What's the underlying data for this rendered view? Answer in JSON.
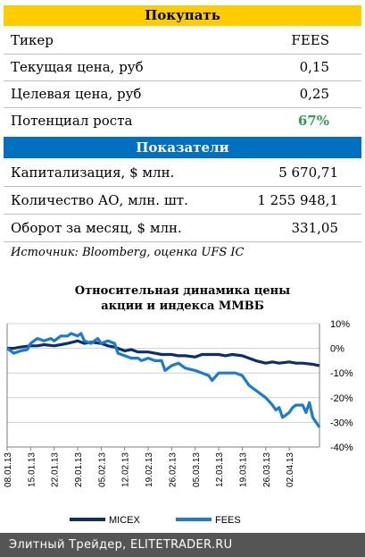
{
  "header": {
    "title": "Покупать"
  },
  "rows_top": [
    {
      "label": "Тикер",
      "value": "FEES"
    },
    {
      "label": "Текущая цена, руб",
      "value": "0,15"
    },
    {
      "label": "Целевая цена, руб",
      "value": "0,25"
    },
    {
      "label": "Потенциал роста",
      "value": "67%"
    }
  ],
  "colors": {
    "header_bg": "#ffcc00",
    "section_bg": "#0070c0",
    "highlight": "#2e9e4f",
    "micex": "#0b2f6b",
    "fees": "#1b7bd1"
  },
  "section": {
    "title": "Показатели"
  },
  "rows_bottom": [
    {
      "label": "Капитализация, $ млн.",
      "value": "5 670,71"
    },
    {
      "label": "Количество АО, млн. шт.",
      "value": "1 255 948,1"
    },
    {
      "label": "Оборот за месяц, $ млн.",
      "value": "331,05"
    }
  ],
  "source": "Источник: Bloomberg, оценка UFS IC",
  "footer": "Элитный Трейдер, ELITETRADER.RU",
  "chart_data": {
    "type": "line",
    "title_lines": [
      "Относительная динамика цены",
      "акции и индекса ММВБ"
    ],
    "x_tick_labels": [
      "08.01.13",
      "15.01.13",
      "22.01.13",
      "29.01.13",
      "05.02.13",
      "12.02.13",
      "19.02.13",
      "26.02.13",
      "05.03.13",
      "12.03.13",
      "19.03.13",
      "26.03.13",
      "02.04.13"
    ],
    "y_ticks": [
      10,
      0,
      -10,
      -20,
      -30,
      -40
    ],
    "y_tick_labels": [
      "10%",
      "0%",
      "-10%",
      "-20%",
      "-30%",
      "-40%"
    ],
    "ylim": [
      -40,
      10
    ],
    "x_range_days": [
      0,
      93
    ],
    "grid": true,
    "legend_position": "bottom",
    "series": [
      {
        "name": "MICEX",
        "color": "#0b2f6b",
        "points": [
          [
            0,
            0
          ],
          [
            2,
            0
          ],
          [
            4,
            0.5
          ],
          [
            7,
            1
          ],
          [
            9,
            1
          ],
          [
            11,
            1.5
          ],
          [
            14,
            1
          ],
          [
            16,
            1.5
          ],
          [
            18,
            2
          ],
          [
            21,
            3
          ],
          [
            23,
            2
          ],
          [
            25,
            2.5
          ],
          [
            28,
            2
          ],
          [
            30,
            1
          ],
          [
            32,
            0.5
          ],
          [
            35,
            -1
          ],
          [
            37,
            -0.5
          ],
          [
            39,
            -1.5
          ],
          [
            42,
            -1.5
          ],
          [
            44,
            -2
          ],
          [
            46,
            -2.5
          ],
          [
            49,
            -2.5
          ],
          [
            51,
            -3
          ],
          [
            53,
            -3
          ],
          [
            56,
            -3.5
          ],
          [
            58,
            -2.5
          ],
          [
            60,
            -2.5
          ],
          [
            63,
            -2.5
          ],
          [
            65,
            -3
          ],
          [
            67,
            -2.5
          ],
          [
            70,
            -3
          ],
          [
            72,
            -4
          ],
          [
            74,
            -5
          ],
          [
            77,
            -6
          ],
          [
            79,
            -5.5
          ],
          [
            81,
            -6
          ],
          [
            84,
            -5.5
          ],
          [
            86,
            -6
          ],
          [
            88,
            -6
          ],
          [
            91,
            -6.5
          ],
          [
            93,
            -7
          ]
        ]
      },
      {
        "name": "FEES",
        "color": "#1b7bd1",
        "points": [
          [
            0,
            0
          ],
          [
            2,
            -2
          ],
          [
            4,
            -1
          ],
          [
            6,
            -0.5
          ],
          [
            7,
            2
          ],
          [
            9,
            4
          ],
          [
            11,
            3
          ],
          [
            13,
            4
          ],
          [
            14,
            3
          ],
          [
            16,
            5
          ],
          [
            18,
            5
          ],
          [
            19,
            6
          ],
          [
            21,
            5
          ],
          [
            22,
            6
          ],
          [
            23,
            3
          ],
          [
            25,
            2
          ],
          [
            26,
            3
          ],
          [
            27,
            4
          ],
          [
            28,
            2
          ],
          [
            30,
            3
          ],
          [
            32,
            2
          ],
          [
            33,
            -2
          ],
          [
            35,
            -3
          ],
          [
            37,
            -4
          ],
          [
            39,
            -4
          ],
          [
            40,
            -5
          ],
          [
            42,
            -4
          ],
          [
            44,
            -5
          ],
          [
            46,
            -5
          ],
          [
            47,
            -9
          ],
          [
            49,
            -7
          ],
          [
            51,
            -6
          ],
          [
            53,
            -8
          ],
          [
            56,
            -9
          ],
          [
            58,
            -10
          ],
          [
            60,
            -11
          ],
          [
            61,
            -13
          ],
          [
            63,
            -10
          ],
          [
            65,
            -10
          ],
          [
            67,
            -10
          ],
          [
            68,
            -10
          ],
          [
            70,
            -11
          ],
          [
            72,
            -15
          ],
          [
            74,
            -17
          ],
          [
            77,
            -20
          ],
          [
            79,
            -23
          ],
          [
            80,
            -25
          ],
          [
            81,
            -24
          ],
          [
            82,
            -28
          ],
          [
            84,
            -26
          ],
          [
            85,
            -24
          ],
          [
            86,
            -23
          ],
          [
            88,
            -23
          ],
          [
            89,
            -26
          ],
          [
            90,
            -22
          ],
          [
            91,
            -28
          ],
          [
            92,
            -30
          ],
          [
            93,
            -32
          ]
        ]
      }
    ]
  }
}
